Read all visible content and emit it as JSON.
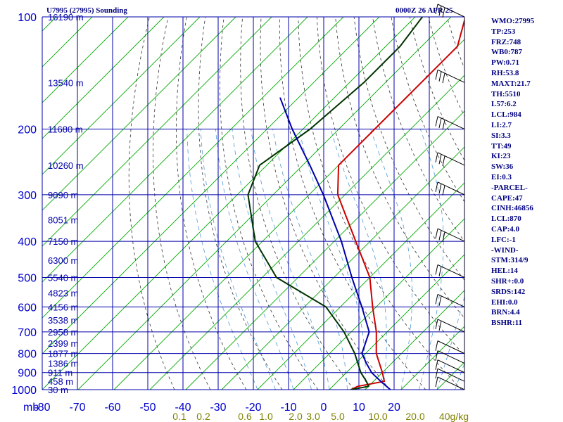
{
  "header": {
    "station": "U7995 (27995) Sounding",
    "time": "0000Z 26 APR 25"
  },
  "indices": [
    "WMO:27995",
    "TP:253",
    "FRZ:748",
    "WB0:787",
    "PW:0.71",
    "RH:53.8",
    "MAXT:21.7",
    "TH:5510",
    "L57:6.2",
    "LCL:984",
    "LI:2.7",
    "SI:3.3",
    "TT:49",
    "KI:23",
    "SW:36",
    "EI:0.3",
    "-PARCEL-",
    "CAPE:47",
    "CINH:46856",
    "LCL:870",
    "CAP:4.0",
    "LFC:-1",
    "-WIND-",
    "STM:314/9",
    "HEL:14",
    "SHR+:0.0",
    "SRDS:142",
    "EHI:0.0",
    "BRN:4.4",
    "BSHR:11"
  ],
  "chart_data": {
    "type": "line",
    "title": "U7995 (27995) Sounding",
    "xlabel": "",
    "ylabel": "mb",
    "y_axis_label": "mb",
    "y_scale": "log (pressure, inverted)",
    "ylim": [
      1000,
      100
    ],
    "xlim": [
      -80,
      20
    ],
    "skew": "isotherms skewed 45 degrees",
    "grid": true,
    "pressure_ticks": [
      100,
      200,
      300,
      400,
      500,
      600,
      700,
      800,
      900,
      1000
    ],
    "x_ticks": [
      -80,
      -70,
      -60,
      -50,
      -40,
      -30,
      -20,
      -10,
      0,
      10,
      20
    ],
    "height_labels": [
      {
        "p": 100,
        "label": "16190 m"
      },
      {
        "p": 150,
        "label": "13540 m"
      },
      {
        "p": 200,
        "label": "11680 m"
      },
      {
        "p": 250,
        "label": "10260 m"
      },
      {
        "p": 300,
        "label": "9090 m"
      },
      {
        "p": 350,
        "label": "8051 m"
      },
      {
        "p": 400,
        "label": "7150 m"
      },
      {
        "p": 450,
        "label": "6300 m"
      },
      {
        "p": 500,
        "label": "5540 m"
      },
      {
        "p": 550,
        "label": "4823 m"
      },
      {
        "p": 600,
        "label": "4156 m"
      },
      {
        "p": 650,
        "label": "3538 m"
      },
      {
        "p": 700,
        "label": "2958 m"
      },
      {
        "p": 750,
        "label": "2399 m"
      },
      {
        "p": 800,
        "label": "1877 m"
      },
      {
        "p": 850,
        "label": "1386 m"
      },
      {
        "p": 900,
        "label": "911 m"
      },
      {
        "p": 950,
        "label": "458 m"
      },
      {
        "p": 1000,
        "label": "30 m"
      }
    ],
    "mixing_ratio_labels": [
      "0.1",
      "0.2",
      "0.6",
      "1.0",
      "2.0",
      "3.0",
      "5.0",
      "10.0",
      "20.0",
      "40g/kg"
    ],
    "series": [
      {
        "color": "#cc0000",
        "points": [
          {
            "p": 100,
            "t": -66
          },
          {
            "p": 120,
            "t": -60
          },
          {
            "p": 150,
            "t": -60
          },
          {
            "p": 200,
            "t": -60
          },
          {
            "p": 250,
            "t": -60
          },
          {
            "p": 300,
            "t": -52
          },
          {
            "p": 400,
            "t": -34
          },
          {
            "p": 500,
            "t": -20
          },
          {
            "p": 600,
            "t": -11
          },
          {
            "p": 700,
            "t": -3
          },
          {
            "p": 800,
            "t": 3
          },
          {
            "p": 900,
            "t": 10
          },
          {
            "p": 950,
            "t": 13
          },
          {
            "p": 980,
            "t": 7
          },
          {
            "p": 1000,
            "t": 6
          }
        ]
      },
      {
        "color": "#003300",
        "points": [
          {
            "p": 100,
            "t": -78
          },
          {
            "p": 120,
            "t": -76
          },
          {
            "p": 150,
            "t": -76
          },
          {
            "p": 200,
            "t": -78
          },
          {
            "p": 250,
            "t": -82
          },
          {
            "p": 300,
            "t": -77
          },
          {
            "p": 400,
            "t": -62
          },
          {
            "p": 500,
            "t": -46
          },
          {
            "p": 600,
            "t": -24
          },
          {
            "p": 700,
            "t": -12
          },
          {
            "p": 800,
            "t": -3
          },
          {
            "p": 900,
            "t": 4
          },
          {
            "p": 950,
            "t": 8
          },
          {
            "p": 980,
            "t": 10
          },
          {
            "p": 1000,
            "t": 6
          }
        ]
      },
      {
        "color": "#0000aa",
        "points": [
          {
            "p": 1000,
            "t": 17
          },
          {
            "p": 950,
            "t": 12
          },
          {
            "p": 900,
            "t": 7
          },
          {
            "p": 850,
            "t": 3
          },
          {
            "p": 800,
            "t": -1
          },
          {
            "p": 700,
            "t": -5
          },
          {
            "p": 600,
            "t": -14
          },
          {
            "p": 500,
            "t": -25
          },
          {
            "p": 400,
            "t": -38
          },
          {
            "p": 300,
            "t": -56
          },
          {
            "p": 250,
            "t": -68
          },
          {
            "p": 200,
            "t": -83
          },
          {
            "p": 165,
            "t": -95
          }
        ]
      }
    ],
    "wind_barbs": [
      {
        "p": 100
      },
      {
        "p": 150
      },
      {
        "p": 200
      },
      {
        "p": 250
      },
      {
        "p": 300
      },
      {
        "p": 400
      },
      {
        "p": 500
      },
      {
        "p": 600
      },
      {
        "p": 700
      },
      {
        "p": 800
      },
      {
        "p": 850
      },
      {
        "p": 900
      },
      {
        "p": 950
      },
      {
        "p": 1000
      }
    ],
    "colors": {
      "isobar": "#0000aa",
      "isotherm": "#00aa00",
      "dry_adiabat": "#333333",
      "moist_adiabat": "#4f9ad6",
      "axis_text": "#0000cc",
      "mixing_text": "#808000"
    }
  }
}
